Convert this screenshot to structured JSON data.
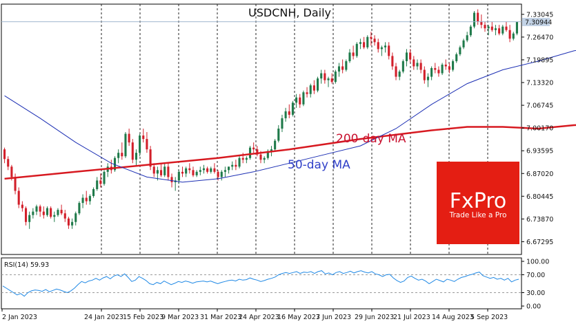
{
  "chart": {
    "title": "USDCNH, Daily",
    "current_price_label": "7.30944",
    "ma200_label": "200-day MA",
    "ma50_label": "50-day MA",
    "rsi_label": "RSI(14) 59.93"
  },
  "logo": {
    "brand": "FxPro",
    "tagline": "Trade Like a Pro",
    "bg_color": "#e41e13"
  },
  "colors": {
    "bull": "#1f7a4a",
    "bear": "#d21f2a",
    "ma200": "#d71920",
    "ma50": "#1a2db3",
    "rsi": "#1e88e5",
    "price_line": "#9fb6cf"
  },
  "chart_data": [
    {
      "type": "candlestick",
      "title": "USDCNH, Daily",
      "ylim": [
        6.64,
        7.356
      ],
      "y_ticks": [
        7.33045,
        7.2647,
        7.19895,
        7.1332,
        7.06745,
        7.0017,
        6.93595,
        6.8702,
        6.80445,
        6.7387,
        6.67295
      ],
      "y_tick_labels": [
        "7.33045",
        "7.26470",
        "7.19895",
        "7.13320",
        "7.06745",
        "7.00170",
        "6.93595",
        "6.87020",
        "6.80445",
        "6.73870",
        "6.67295"
      ],
      "x_tick_labels": [
        "2 Jan 2023",
        "24 Jan 2023",
        "15 Feb 2023",
        "9 Mar 2023",
        "31 Mar 2023",
        "24 Apr 2023",
        "16 May 2023",
        "7 Jun 2023",
        "29 Jun 2023",
        "21 Jul 2023",
        "14 Aug 2023",
        "5 Sep 2023"
      ],
      "ohlc": [
        [
          6.94,
          6.945,
          6.9,
          6.912
        ],
        [
          6.912,
          6.92,
          6.88,
          6.89
        ],
        [
          6.89,
          6.895,
          6.85,
          6.86
        ],
        [
          6.86,
          6.87,
          6.81,
          6.82
        ],
        [
          6.82,
          6.83,
          6.77,
          6.78
        ],
        [
          6.78,
          6.79,
          6.76,
          6.77
        ],
        [
          6.77,
          6.775,
          6.72,
          6.73
        ],
        [
          6.73,
          6.76,
          6.71,
          6.75
        ],
        [
          6.75,
          6.77,
          6.74,
          6.76
        ],
        [
          6.76,
          6.78,
          6.75,
          6.775
        ],
        [
          6.775,
          6.78,
          6.745,
          6.76
        ],
        [
          6.76,
          6.775,
          6.74,
          6.75
        ],
        [
          6.75,
          6.775,
          6.745,
          6.77
        ],
        [
          6.77,
          6.775,
          6.74,
          6.745
        ],
        [
          6.745,
          6.76,
          6.73,
          6.75
        ],
        [
          6.75,
          6.77,
          6.745,
          6.765
        ],
        [
          6.765,
          6.78,
          6.75,
          6.755
        ],
        [
          6.755,
          6.765,
          6.73,
          6.74
        ],
        [
          6.74,
          6.745,
          6.71,
          6.72
        ],
        [
          6.72,
          6.74,
          6.71,
          6.73
        ],
        [
          6.73,
          6.76,
          6.72,
          6.755
        ],
        [
          6.755,
          6.79,
          6.75,
          6.785
        ],
        [
          6.785,
          6.81,
          6.77,
          6.8
        ],
        [
          6.8,
          6.82,
          6.78,
          6.79
        ],
        [
          6.79,
          6.81,
          6.78,
          6.805
        ],
        [
          6.805,
          6.83,
          6.8,
          6.825
        ],
        [
          6.825,
          6.86,
          6.82,
          6.85
        ],
        [
          6.85,
          6.87,
          6.83,
          6.84
        ],
        [
          6.84,
          6.88,
          6.835,
          6.875
        ],
        [
          6.875,
          6.9,
          6.86,
          6.89
        ],
        [
          6.89,
          6.91,
          6.87,
          6.88
        ],
        [
          6.88,
          6.92,
          6.875,
          6.915
        ],
        [
          6.915,
          6.94,
          6.9,
          6.93
        ],
        [
          6.93,
          6.96,
          6.91,
          6.92
        ],
        [
          6.92,
          6.99,
          6.915,
          6.985
        ],
        [
          6.985,
          7.0,
          6.95,
          6.96
        ],
        [
          6.96,
          6.97,
          6.9,
          6.91
        ],
        [
          6.91,
          6.94,
          6.89,
          6.93
        ],
        [
          6.93,
          6.985,
          6.92,
          6.98
        ],
        [
          6.98,
          7.0,
          6.96,
          6.97
        ],
        [
          6.97,
          6.99,
          6.93,
          6.94
        ],
        [
          6.94,
          6.95,
          6.88,
          6.89
        ],
        [
          6.89,
          6.9,
          6.86,
          6.87
        ],
        [
          6.87,
          6.89,
          6.85,
          6.88
        ],
        [
          6.88,
          6.9,
          6.86,
          6.865
        ],
        [
          6.865,
          6.9,
          6.86,
          6.89
        ],
        [
          6.89,
          6.9,
          6.85,
          6.86
        ],
        [
          6.86,
          6.87,
          6.83,
          6.845
        ],
        [
          6.845,
          6.86,
          6.82,
          6.85
        ],
        [
          6.85,
          6.88,
          6.84,
          6.875
        ],
        [
          6.875,
          6.89,
          6.86,
          6.87
        ],
        [
          6.87,
          6.89,
          6.86,
          6.885
        ],
        [
          6.885,
          6.9,
          6.87,
          6.88
        ],
        [
          6.88,
          6.89,
          6.86,
          6.865
        ],
        [
          6.865,
          6.88,
          6.86,
          6.875
        ],
        [
          6.875,
          6.89,
          6.865,
          6.88
        ],
        [
          6.88,
          6.895,
          6.87,
          6.885
        ],
        [
          6.885,
          6.89,
          6.87,
          6.875
        ],
        [
          6.875,
          6.89,
          6.87,
          6.885
        ],
        [
          6.885,
          6.9,
          6.87,
          6.875
        ],
        [
          6.875,
          6.88,
          6.85,
          6.86
        ],
        [
          6.86,
          6.88,
          6.85,
          6.875
        ],
        [
          6.875,
          6.89,
          6.86,
          6.88
        ],
        [
          6.88,
          6.89,
          6.87,
          6.89
        ],
        [
          6.89,
          6.905,
          6.88,
          6.895
        ],
        [
          6.895,
          6.91,
          6.88,
          6.89
        ],
        [
          6.89,
          6.92,
          6.885,
          6.915
        ],
        [
          6.915,
          6.93,
          6.9,
          6.91
        ],
        [
          6.91,
          6.92,
          6.9,
          6.915
        ],
        [
          6.915,
          6.95,
          6.91,
          6.945
        ],
        [
          6.945,
          6.96,
          6.93,
          6.94
        ],
        [
          6.94,
          6.95,
          6.92,
          6.925
        ],
        [
          6.925,
          6.935,
          6.9,
          6.91
        ],
        [
          6.91,
          6.92,
          6.9,
          6.915
        ],
        [
          6.915,
          6.94,
          6.91,
          6.935
        ],
        [
          6.935,
          6.95,
          6.92,
          6.94
        ],
        [
          6.94,
          6.97,
          6.935,
          6.965
        ],
        [
          6.965,
          7.01,
          6.96,
          7.0
        ],
        [
          7.0,
          7.04,
          6.99,
          7.03
        ],
        [
          7.03,
          7.06,
          7.02,
          7.05
        ],
        [
          7.05,
          7.07,
          7.03,
          7.04
        ],
        [
          7.04,
          7.08,
          7.035,
          7.075
        ],
        [
          7.075,
          7.1,
          7.06,
          7.09
        ],
        [
          7.09,
          7.1,
          7.06,
          7.07
        ],
        [
          7.07,
          7.11,
          7.065,
          7.105
        ],
        [
          7.105,
          7.12,
          7.09,
          7.1
        ],
        [
          7.1,
          7.13,
          7.09,
          7.125
        ],
        [
          7.125,
          7.14,
          7.1,
          7.11
        ],
        [
          7.11,
          7.15,
          7.105,
          7.145
        ],
        [
          7.145,
          7.17,
          7.13,
          7.16
        ],
        [
          7.16,
          7.17,
          7.13,
          7.14
        ],
        [
          7.14,
          7.15,
          7.12,
          7.145
        ],
        [
          7.145,
          7.16,
          7.13,
          7.135
        ],
        [
          7.135,
          7.17,
          7.13,
          7.165
        ],
        [
          7.165,
          7.19,
          7.15,
          7.18
        ],
        [
          7.18,
          7.2,
          7.16,
          7.17
        ],
        [
          7.17,
          7.2,
          7.165,
          7.195
        ],
        [
          7.195,
          7.23,
          7.19,
          7.22
        ],
        [
          7.22,
          7.24,
          7.2,
          7.21
        ],
        [
          7.21,
          7.25,
          7.205,
          7.245
        ],
        [
          7.245,
          7.26,
          7.23,
          7.25
        ],
        [
          7.25,
          7.265,
          7.23,
          7.235
        ],
        [
          7.235,
          7.27,
          7.23,
          7.265
        ],
        [
          7.265,
          7.28,
          7.24,
          7.26
        ],
        [
          7.26,
          7.27,
          7.24,
          7.25
        ],
        [
          7.25,
          7.26,
          7.22,
          7.23
        ],
        [
          7.23,
          7.24,
          7.21,
          7.235
        ],
        [
          7.235,
          7.25,
          7.22,
          7.24
        ],
        [
          7.24,
          7.25,
          7.2,
          7.21
        ],
        [
          7.21,
          7.22,
          7.17,
          7.18
        ],
        [
          7.18,
          7.19,
          7.14,
          7.15
        ],
        [
          7.15,
          7.17,
          7.14,
          7.165
        ],
        [
          7.165,
          7.2,
          7.16,
          7.195
        ],
        [
          7.195,
          7.23,
          7.18,
          7.22
        ],
        [
          7.22,
          7.23,
          7.19,
          7.2
        ],
        [
          7.2,
          7.21,
          7.17,
          7.18
        ],
        [
          7.18,
          7.2,
          7.17,
          7.19
        ],
        [
          7.19,
          7.2,
          7.16,
          7.17
        ],
        [
          7.17,
          7.18,
          7.13,
          7.14
        ],
        [
          7.14,
          7.16,
          7.12,
          7.15
        ],
        [
          7.15,
          7.18,
          7.14,
          7.175
        ],
        [
          7.175,
          7.19,
          7.16,
          7.17
        ],
        [
          7.17,
          7.18,
          7.15,
          7.16
        ],
        [
          7.16,
          7.19,
          7.155,
          7.185
        ],
        [
          7.185,
          7.2,
          7.17,
          7.18
        ],
        [
          7.18,
          7.19,
          7.16,
          7.17
        ],
        [
          7.17,
          7.2,
          7.165,
          7.195
        ],
        [
          7.195,
          7.22,
          7.19,
          7.215
        ],
        [
          7.215,
          7.24,
          7.21,
          7.235
        ],
        [
          7.235,
          7.26,
          7.23,
          7.255
        ],
        [
          7.255,
          7.28,
          7.25,
          7.27
        ],
        [
          7.27,
          7.3,
          7.265,
          7.295
        ],
        [
          7.295,
          7.34,
          7.29,
          7.335
        ],
        [
          7.335,
          7.345,
          7.3,
          7.31
        ],
        [
          7.31,
          7.33,
          7.29,
          7.3
        ],
        [
          7.3,
          7.31,
          7.28,
          7.29
        ],
        [
          7.29,
          7.3,
          7.27,
          7.295
        ],
        [
          7.295,
          7.31,
          7.28,
          7.285
        ],
        [
          7.285,
          7.3,
          7.27,
          7.29
        ],
        [
          7.29,
          7.3,
          7.27,
          7.275
        ],
        [
          7.275,
          7.3,
          7.27,
          7.295
        ],
        [
          7.295,
          7.31,
          7.28,
          7.285
        ],
        [
          7.285,
          7.3,
          7.25,
          7.26
        ],
        [
          7.26,
          7.28,
          7.255,
          7.275
        ],
        [
          7.275,
          7.31,
          7.27,
          7.309
        ]
      ],
      "ma50": [
        [
          0,
          7.095
        ],
        [
          10,
          7.03
        ],
        [
          20,
          6.96
        ],
        [
          30,
          6.9
        ],
        [
          40,
          6.86
        ],
        [
          50,
          6.845
        ],
        [
          60,
          6.855
        ],
        [
          70,
          6.875
        ],
        [
          80,
          6.9
        ],
        [
          90,
          6.925
        ],
        [
          100,
          6.95
        ],
        [
          110,
          7.0
        ],
        [
          120,
          7.07
        ],
        [
          130,
          7.13
        ],
        [
          140,
          7.17
        ],
        [
          150,
          7.195
        ],
        [
          160,
          7.225
        ],
        [
          166,
          7.235
        ]
      ],
      "ma200": [
        [
          0,
          6.855
        ],
        [
          20,
          6.875
        ],
        [
          40,
          6.895
        ],
        [
          60,
          6.915
        ],
        [
          80,
          6.94
        ],
        [
          100,
          6.97
        ],
        [
          120,
          6.995
        ],
        [
          130,
          7.005
        ],
        [
          140,
          7.005
        ],
        [
          150,
          7.0
        ],
        [
          160,
          7.01
        ],
        [
          166,
          7.013
        ]
      ]
    },
    {
      "type": "line",
      "title": "RSI(14) 59.93",
      "ylim": [
        0,
        100
      ],
      "y_ticks": [
        100,
        70,
        30,
        0
      ],
      "y_tick_labels": [
        "100.00",
        "70.00",
        "30.00",
        "0.00"
      ],
      "values": [
        45,
        40,
        35,
        30,
        25,
        28,
        22,
        30,
        34,
        36,
        35,
        33,
        37,
        32,
        35,
        38,
        36,
        33,
        30,
        34,
        40,
        48,
        55,
        52,
        56,
        58,
        62,
        58,
        63,
        66,
        61,
        67,
        70,
        66,
        72,
        64,
        55,
        58,
        66,
        62,
        57,
        50,
        48,
        53,
        50,
        56,
        52,
        48,
        51,
        55,
        53,
        56,
        54,
        51,
        54,
        55,
        56,
        54,
        56,
        53,
        50,
        53,
        55,
        57,
        58,
        56,
        60,
        58,
        59,
        63,
        60,
        58,
        55,
        57,
        60,
        62,
        65,
        70,
        73,
        75,
        73,
        75,
        77,
        73,
        76,
        75,
        77,
        73,
        77,
        79,
        72,
        74,
        70,
        75,
        77,
        73,
        75,
        78,
        74,
        77,
        79,
        76,
        74,
        77,
        72,
        70,
        66,
        70,
        71,
        63,
        57,
        53,
        56,
        64,
        67,
        62,
        58,
        60,
        56,
        50,
        55,
        60,
        57,
        54,
        60,
        58,
        55,
        60,
        64,
        66,
        69,
        71,
        74,
        76,
        68,
        65,
        62,
        64,
        60,
        62,
        58,
        62,
        54,
        58,
        60
      ]
    }
  ]
}
